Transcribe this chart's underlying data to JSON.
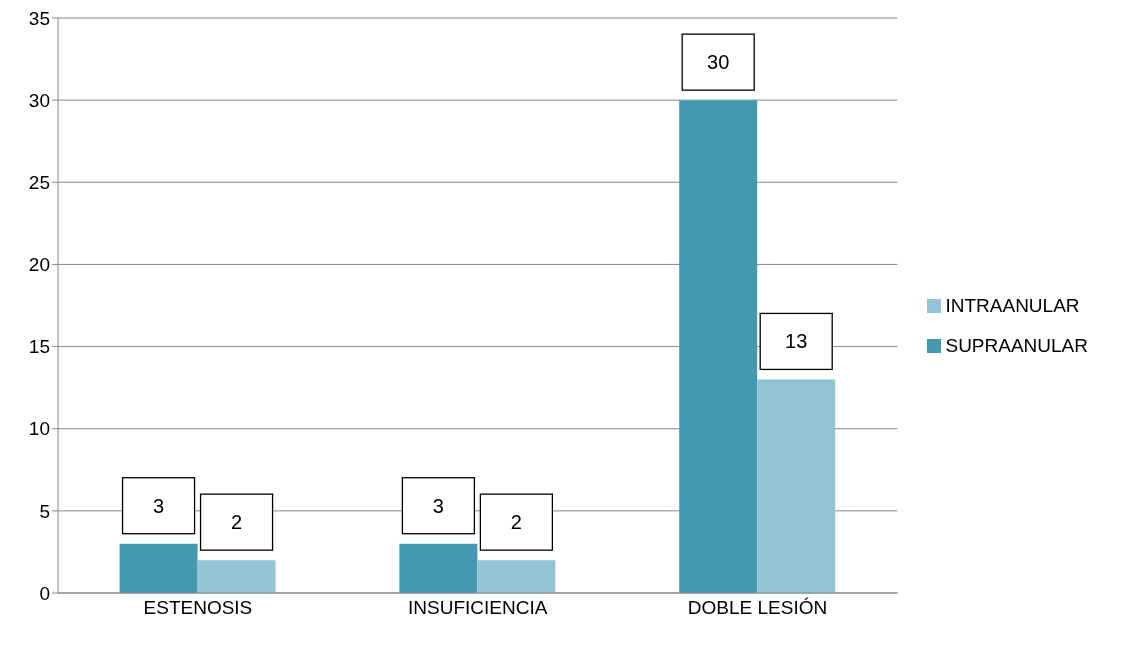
{
  "chart_data": {
    "type": "bar",
    "categories": [
      "ESTENOSIS",
      "INSUFICIENCIA",
      "DOBLE LESIÓN"
    ],
    "series": [
      {
        "name": "SUPRAANULAR",
        "color": "#4499b0",
        "values": [
          3,
          3,
          30
        ]
      },
      {
        "name": "INTRAANULAR",
        "color": "#93c4d6",
        "values": [
          2,
          2,
          13
        ]
      }
    ],
    "ylim": [
      0,
      35
    ],
    "yticks": [
      0,
      5,
      10,
      15,
      20,
      25,
      30,
      35
    ],
    "grid": "y",
    "legend": "right",
    "data_labels": true
  }
}
